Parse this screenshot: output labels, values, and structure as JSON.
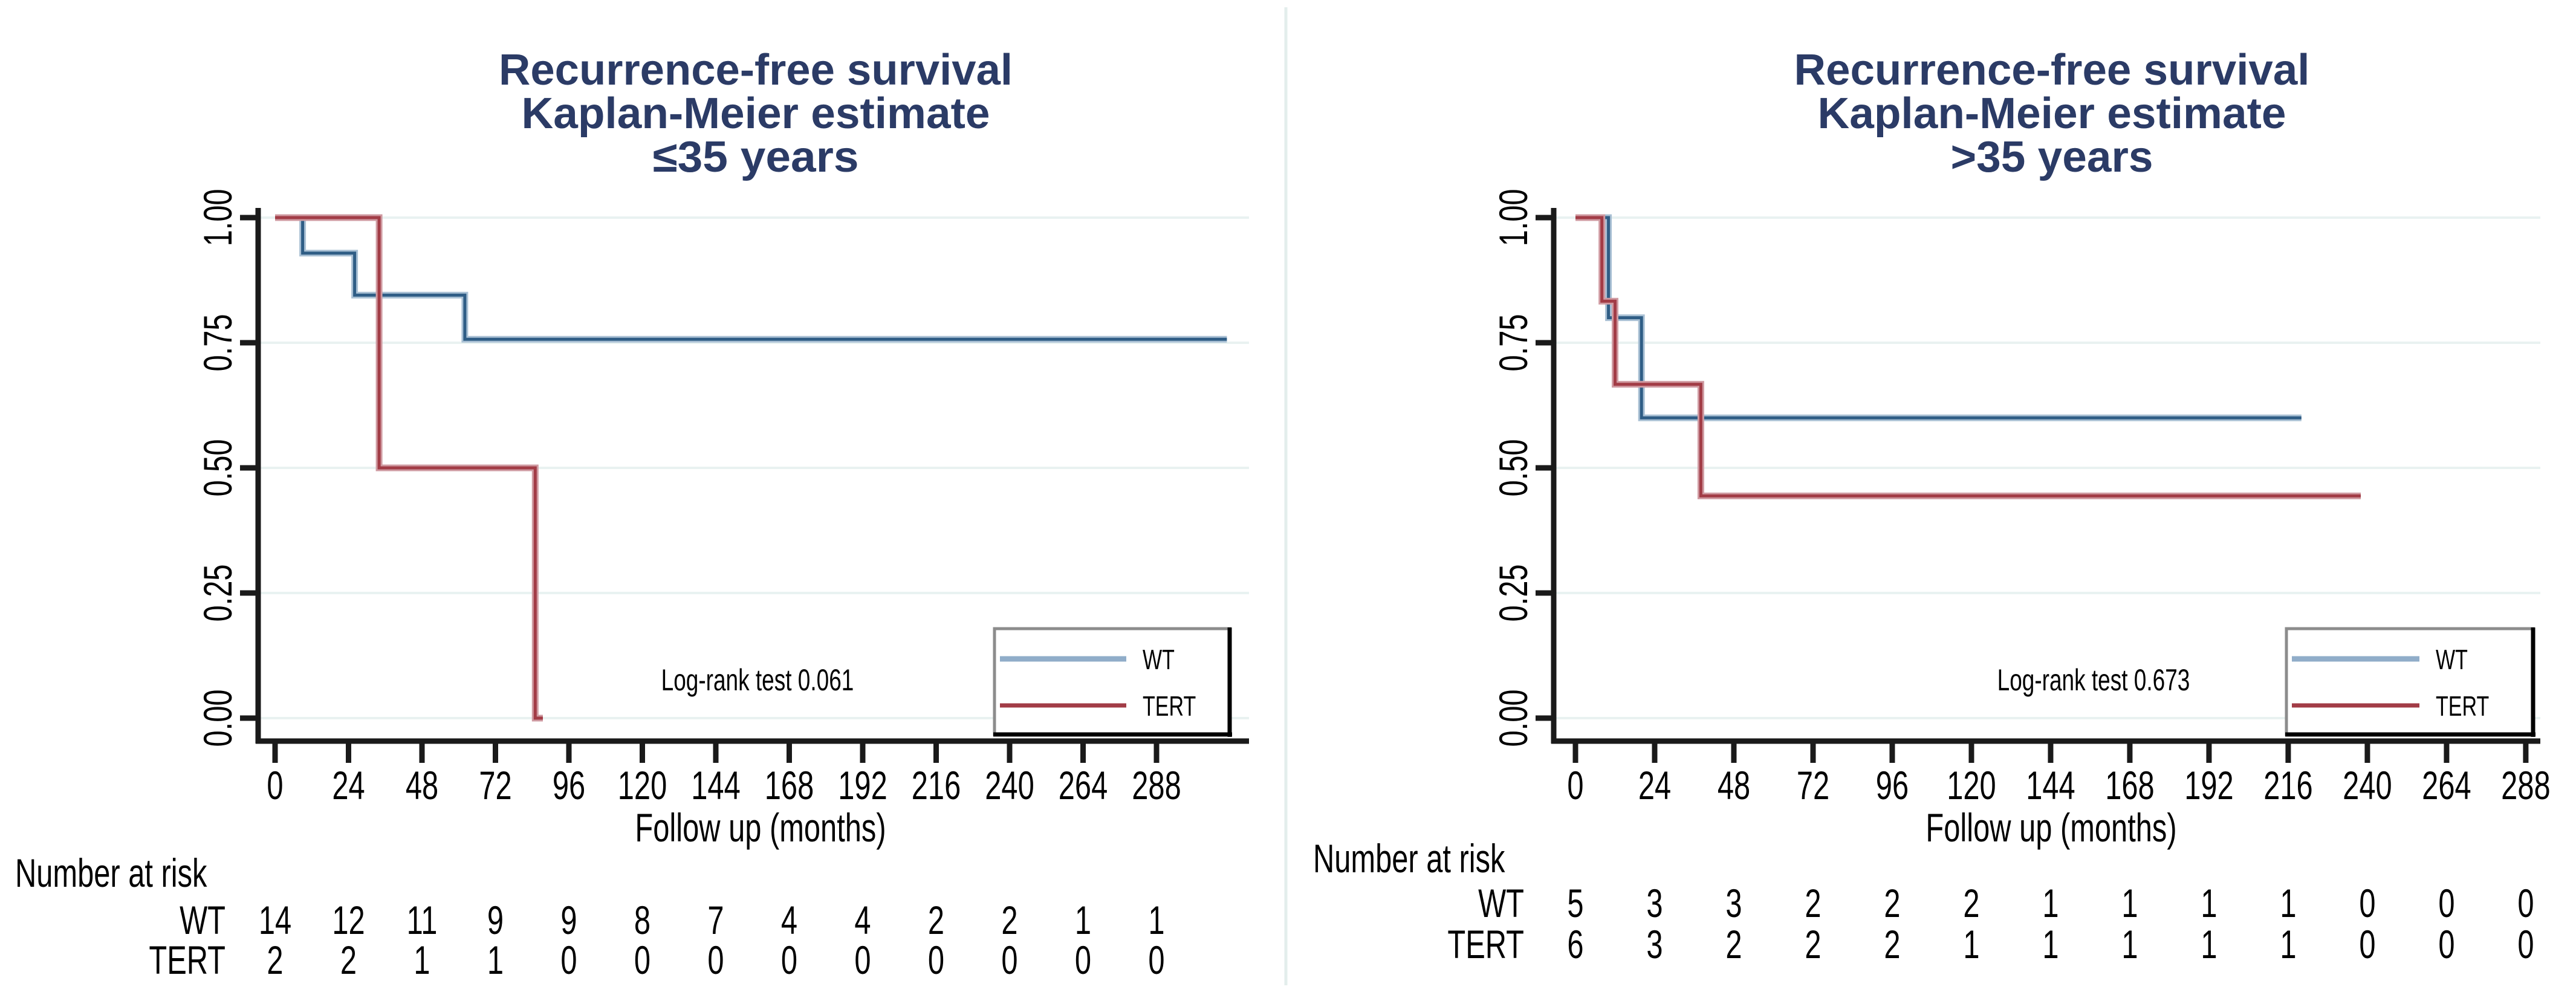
{
  "styles": {
    "background": "#ffffff",
    "title_color": "#2B3B66",
    "text_color": "#000000",
    "axis_color": "#1A1A1A",
    "grid_color": "#E9F2F1",
    "divider_color": "#E3EEEC",
    "legend_border_light": "#8C8C8C",
    "legend_border_dark": "#000000",
    "legend_fill": "#FFFFFF"
  },
  "chart_data": [
    {
      "type": "line",
      "chart_kind": "kaplan-meier-step",
      "title_lines": [
        "Recurrence-free survival",
        "Kaplan-Meier estimate",
        "≤35 years"
      ],
      "xlabel": "Follow up (months)",
      "annotation": "Log-rank test 0.061",
      "x_ticks": [
        0,
        24,
        48,
        72,
        96,
        120,
        144,
        168,
        192,
        216,
        240,
        264,
        288
      ],
      "xlim": [
        0,
        318
      ],
      "ylim": [
        0,
        1
      ],
      "y_tick_labels": [
        "1.00",
        "0.75",
        "0.50",
        "0.25",
        "0.00"
      ],
      "y_tick_values": [
        1.0,
        0.75,
        0.5,
        0.25,
        0.0
      ],
      "grid": "horizontal",
      "legend_position": "inside-lower-right",
      "series": [
        {
          "name": "WT",
          "color": "#2F5D85",
          "halo_color": "#A9C0D4",
          "legend_swatch_color": "#90ADC9",
          "steps": [
            [
              0,
              1.0
            ],
            [
              9,
              1.0
            ],
            [
              9,
              0.929
            ],
            [
              26,
              0.929
            ],
            [
              26,
              0.845
            ],
            [
              62,
              0.845
            ],
            [
              62,
              0.757
            ],
            [
              311,
              0.757
            ]
          ]
        },
        {
          "name": "TERT",
          "color": "#A23C46",
          "halo_color": "#CF9AA1",
          "legend_swatch_color": "#A23C46",
          "steps": [
            [
              0,
              1.0
            ],
            [
              34,
              1.0
            ],
            [
              34,
              0.5
            ],
            [
              85,
              0.5
            ],
            [
              85,
              0.0
            ],
            [
              87.5,
              0.0
            ]
          ]
        }
      ],
      "number_at_risk": {
        "heading": "Number at risk",
        "rows": [
          {
            "label": "WT",
            "values": [
              14,
              12,
              11,
              9,
              9,
              8,
              7,
              4,
              4,
              2,
              2,
              1,
              1
            ]
          },
          {
            "label": "TERT",
            "values": [
              2,
              2,
              1,
              1,
              0,
              0,
              0,
              0,
              0,
              0,
              0,
              0,
              0
            ]
          }
        ]
      }
    },
    {
      "type": "line",
      "chart_kind": "kaplan-meier-step",
      "title_lines": [
        "Recurrence-free survival",
        "Kaplan-Meier estimate",
        ">35 years"
      ],
      "xlabel": "Follow up (months)",
      "annotation": "Log-rank test 0.673",
      "x_ticks": [
        0,
        24,
        48,
        72,
        96,
        120,
        144,
        168,
        192,
        216,
        240,
        264,
        288
      ],
      "xlim": [
        0,
        295
      ],
      "ylim": [
        0,
        1
      ],
      "y_tick_labels": [
        "1.00",
        "0.75",
        "0.50",
        "0.25",
        "0.00"
      ],
      "y_tick_values": [
        1.0,
        0.75,
        0.5,
        0.25,
        0.0
      ],
      "grid": "horizontal",
      "legend_position": "inside-lower-right",
      "series": [
        {
          "name": "WT",
          "color": "#2F5D85",
          "halo_color": "#A9C0D4",
          "legend_swatch_color": "#90ADC9",
          "steps": [
            [
              0,
              1.0
            ],
            [
              10,
              1.0
            ],
            [
              10,
              0.8
            ],
            [
              20,
              0.8
            ],
            [
              20,
              0.6
            ],
            [
              220,
              0.6
            ]
          ]
        },
        {
          "name": "TERT",
          "color": "#A23C46",
          "halo_color": "#CF9AA1",
          "legend_swatch_color": "#A23C46",
          "steps": [
            [
              0,
              1.0
            ],
            [
              8,
              1.0
            ],
            [
              8,
              0.833
            ],
            [
              12,
              0.833
            ],
            [
              12,
              0.667
            ],
            [
              38,
              0.667
            ],
            [
              38,
              0.444
            ],
            [
              238,
              0.444
            ]
          ]
        }
      ],
      "number_at_risk": {
        "heading": "Number at risk",
        "rows": [
          {
            "label": "WT",
            "values": [
              5,
              3,
              3,
              2,
              2,
              2,
              1,
              1,
              1,
              1,
              0,
              0,
              0
            ]
          },
          {
            "label": "TERT",
            "values": [
              6,
              3,
              2,
              2,
              2,
              1,
              1,
              1,
              1,
              1,
              0,
              0,
              0
            ]
          }
        ]
      }
    }
  ]
}
